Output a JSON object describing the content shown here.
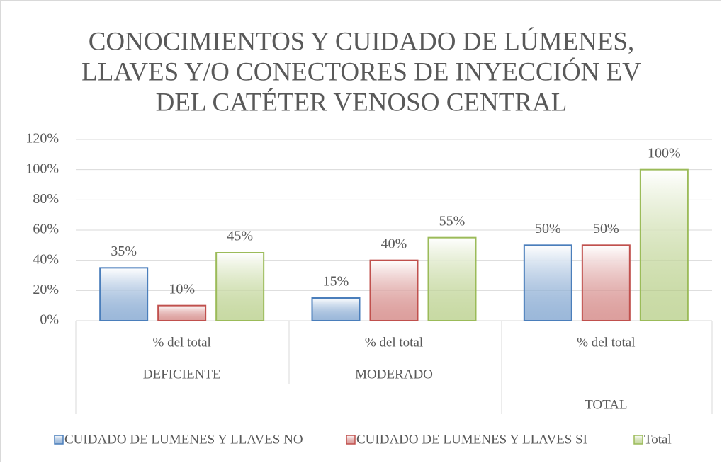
{
  "chart_data": {
    "type": "bar",
    "title": [
      "CONOCIMIENTOS Y CUIDADO DE LÚMENES,",
      "LLAVES Y/O CONECTORES DE INYECCIÓN EV",
      "DEL CATÉTER VENOSO CENTRAL"
    ],
    "categories": [
      "% del total",
      "% del total",
      "% del total"
    ],
    "category_groups": [
      "DEFICIENTE",
      "MODERADO",
      "TOTAL"
    ],
    "series": [
      {
        "name": "CUIDADO DE LUMENES Y LLAVES NO",
        "color": "#4a7ebb",
        "values": [
          35,
          15,
          50
        ],
        "value_labels": [
          "35%",
          "15%",
          "50%"
        ]
      },
      {
        "name": "CUIDADO DE LUMENES Y LLAVES SI",
        "color": "#c0504d",
        "values": [
          10,
          40,
          50
        ],
        "value_labels": [
          "10%",
          "40%",
          "50%"
        ]
      },
      {
        "name": "Total",
        "color": "#9bbb59",
        "values": [
          45,
          55,
          100
        ],
        "value_labels": [
          "45%",
          "55%",
          "100%"
        ]
      }
    ],
    "ylim": [
      0,
      120
    ],
    "yticks": [
      {
        "value": 0,
        "label": "0%"
      },
      {
        "value": 20,
        "label": "20%"
      },
      {
        "value": 40,
        "label": "40%"
      },
      {
        "value": 60,
        "label": "60%"
      },
      {
        "value": 80,
        "label": "80%"
      },
      {
        "value": 100,
        "label": "100%"
      },
      {
        "value": 120,
        "label": "120%"
      }
    ],
    "grid": true,
    "legend": "bottom"
  }
}
